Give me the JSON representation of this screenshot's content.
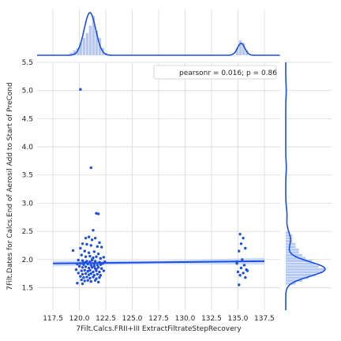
{
  "chart_data": {
    "type": "scatter",
    "title": "",
    "xlabel": "7Filt.Calcs.FRII+III ExtractFiltrateStepRecovery",
    "ylabel": "7Filt.Dates for Calcs.End of Aerosil Add to Start of PreCond",
    "xlim": [
      116.0,
      139.0
    ],
    "ylim": [
      1.1,
      5.5
    ],
    "xticks": [
      "117.5",
      "120.0",
      "122.5",
      "125.0",
      "127.5",
      "130.0",
      "132.5",
      "135.0",
      "137.5"
    ],
    "yticks": [
      "1.5",
      "2.0",
      "2.5",
      "3.0",
      "3.5",
      "4.0",
      "4.5",
      "5.0",
      "5.5"
    ],
    "grid": true,
    "legend": {
      "placement": "top-right",
      "text": "pearsonr = 0.016; p = 0.86"
    },
    "colors": {
      "points": "#1f4fe0",
      "fill": "#a8bff5",
      "line": "#1a4fe6",
      "grid": "#d9d9d9"
    },
    "regression": {
      "x": [
        117.5,
        137.5
      ],
      "y": [
        1.93,
        1.97
      ],
      "ci_halfwidth": [
        0.05,
        0.06
      ]
    },
    "points": [
      [
        120.1,
        5.02
      ],
      [
        121.1,
        3.63
      ],
      [
        121.6,
        2.82
      ],
      [
        121.8,
        2.81
      ],
      [
        121.3,
        2.52
      ],
      [
        120.6,
        2.38
      ],
      [
        120.9,
        2.4
      ],
      [
        121.2,
        2.35
      ],
      [
        121.5,
        2.38
      ],
      [
        121.9,
        2.3
      ],
      [
        120.3,
        2.28
      ],
      [
        120.7,
        2.27
      ],
      [
        121.1,
        2.25
      ],
      [
        121.7,
        2.23
      ],
      [
        122.1,
        2.22
      ],
      [
        119.4,
        2.16
      ],
      [
        120.1,
        2.2
      ],
      [
        120.5,
        2.15
      ],
      [
        120.9,
        2.12
      ],
      [
        121.4,
        2.14
      ],
      [
        121.8,
        2.1
      ],
      [
        120.2,
        2.08
      ],
      [
        120.6,
        2.05
      ],
      [
        121.0,
        2.06
      ],
      [
        121.3,
        2.03
      ],
      [
        121.6,
        2.05
      ],
      [
        122.0,
        2.02
      ],
      [
        122.3,
        2.04
      ],
      [
        119.9,
        1.99
      ],
      [
        120.3,
        1.98
      ],
      [
        120.7,
        1.97
      ],
      [
        121.0,
        1.96
      ],
      [
        121.2,
        1.99
      ],
      [
        121.5,
        1.97
      ],
      [
        121.9,
        1.95
      ],
      [
        122.4,
        1.96
      ],
      [
        119.8,
        1.92
      ],
      [
        120.1,
        1.93
      ],
      [
        120.4,
        1.91
      ],
      [
        120.8,
        1.92
      ],
      [
        121.1,
        1.9
      ],
      [
        121.4,
        1.92
      ],
      [
        121.7,
        1.9
      ],
      [
        122.0,
        1.91
      ],
      [
        122.2,
        1.93
      ],
      [
        120.0,
        1.88
      ],
      [
        120.3,
        1.86
      ],
      [
        120.6,
        1.87
      ],
      [
        120.9,
        1.85
      ],
      [
        121.2,
        1.86
      ],
      [
        121.5,
        1.84
      ],
      [
        121.8,
        1.86
      ],
      [
        122.1,
        1.84
      ],
      [
        119.7,
        1.82
      ],
      [
        120.2,
        1.8
      ],
      [
        120.5,
        1.81
      ],
      [
        120.8,
        1.79
      ],
      [
        121.0,
        1.81
      ],
      [
        121.3,
        1.78
      ],
      [
        121.6,
        1.8
      ],
      [
        121.9,
        1.78
      ],
      [
        122.3,
        1.8
      ],
      [
        119.9,
        1.76
      ],
      [
        120.3,
        1.74
      ],
      [
        120.6,
        1.75
      ],
      [
        120.9,
        1.73
      ],
      [
        121.1,
        1.75
      ],
      [
        121.4,
        1.72
      ],
      [
        121.7,
        1.74
      ],
      [
        122.0,
        1.72
      ],
      [
        120.1,
        1.7
      ],
      [
        120.4,
        1.68
      ],
      [
        120.7,
        1.69
      ],
      [
        121.0,
        1.67
      ],
      [
        121.3,
        1.69
      ],
      [
        121.6,
        1.66
      ],
      [
        121.9,
        1.68
      ],
      [
        120.2,
        1.64
      ],
      [
        120.5,
        1.62
      ],
      [
        120.8,
        1.63
      ],
      [
        121.1,
        1.61
      ],
      [
        121.5,
        1.63
      ],
      [
        121.8,
        1.6
      ],
      [
        119.8,
        1.58
      ],
      [
        120.3,
        1.57
      ],
      [
        121.2,
        2.0
      ],
      [
        120.6,
        1.95
      ],
      [
        121.4,
        1.88
      ],
      [
        120.4,
        1.94
      ],
      [
        121.6,
        1.83
      ],
      [
        135.2,
        2.45
      ],
      [
        135.5,
        2.38
      ],
      [
        135.3,
        2.28
      ],
      [
        135.7,
        2.2
      ],
      [
        135.1,
        2.15
      ],
      [
        135.4,
        2.0
      ],
      [
        134.9,
        1.93
      ],
      [
        135.6,
        1.9
      ],
      [
        135.3,
        1.85
      ],
      [
        135.8,
        1.82
      ],
      [
        135.0,
        1.78
      ],
      [
        135.5,
        1.76
      ],
      [
        135.2,
        1.72
      ],
      [
        135.7,
        1.68
      ],
      [
        135.1,
        1.55
      ],
      [
        135.9,
        1.8
      ],
      [
        134.9,
        1.96
      ]
    ],
    "x_marginal_hist": {
      "bins": [
        119.1,
        119.4,
        119.7,
        120.0,
        120.3,
        120.6,
        120.9,
        121.2,
        121.5,
        121.8,
        122.1,
        122.4,
        134.8,
        135.1,
        135.4,
        135.7
      ],
      "heights": [
        1,
        2,
        3,
        5,
        7,
        9,
        12,
        16,
        10,
        7,
        3,
        1,
        3,
        6,
        5,
        2
      ]
    },
    "y_marginal_hist": {
      "bins": [
        1.55,
        1.6,
        1.65,
        1.7,
        1.75,
        1.8,
        1.85,
        1.9,
        1.95,
        2.0,
        2.05,
        2.1,
        2.15,
        2.2,
        2.25,
        2.3,
        2.35,
        2.4,
        2.45
      ],
      "heights": [
        3,
        5,
        7,
        9,
        11,
        12,
        10,
        9,
        8,
        6,
        5,
        4,
        4,
        3,
        3,
        2,
        2,
        2,
        1
      ]
    }
  }
}
